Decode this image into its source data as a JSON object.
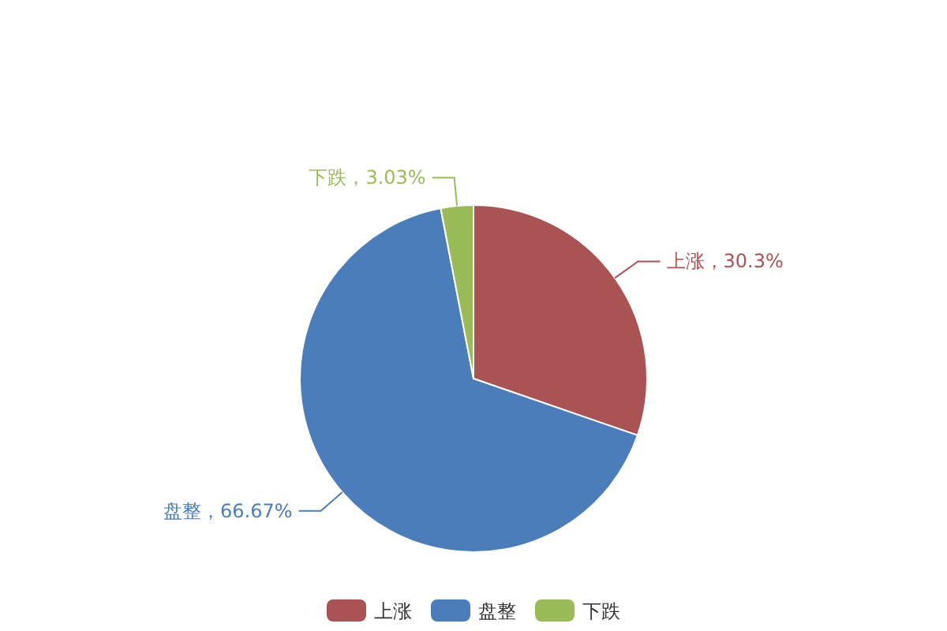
{
  "chart_data": {
    "type": "pie",
    "categories": [
      "上涨",
      "盘整",
      "下跌"
    ],
    "values": [
      30.3,
      66.67,
      3.03
    ],
    "colors": [
      "#aa5355",
      "#4b7dba",
      "#9bbb59"
    ],
    "value_labels": [
      "上涨，30.3%",
      "盘整，66.67%",
      "下跌，3.03%"
    ],
    "legend": "bottom"
  }
}
